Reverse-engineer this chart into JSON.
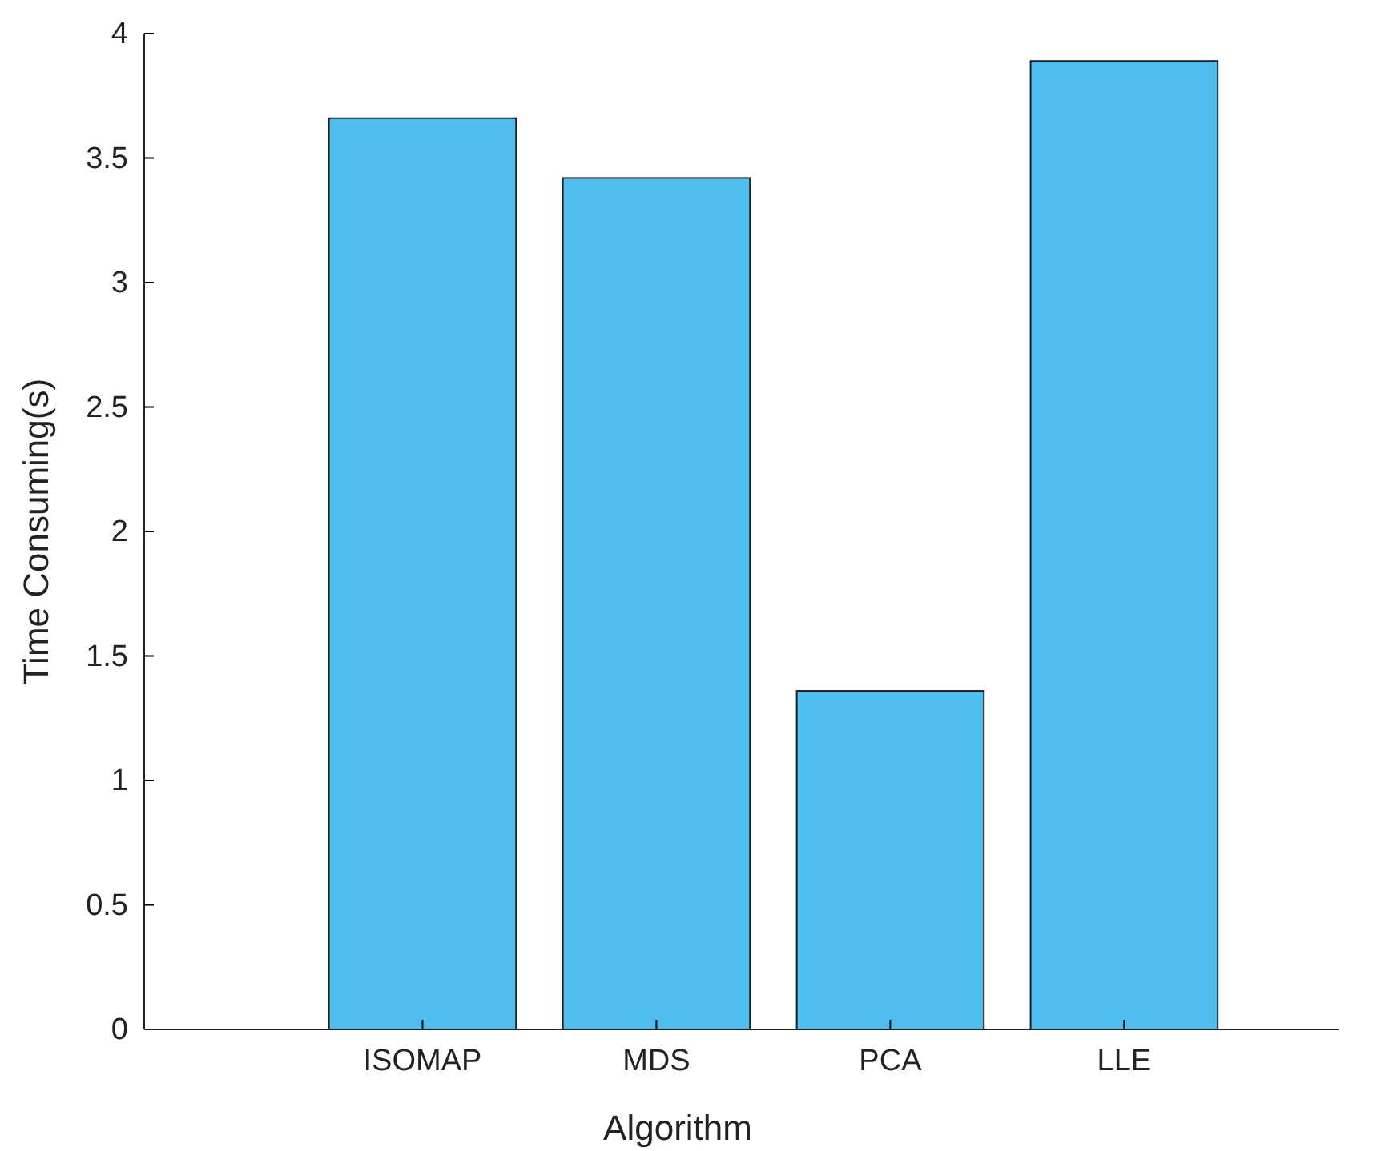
{
  "chart_data": {
    "type": "bar",
    "xlabel": "Algorithm",
    "ylabel": "Time Consuming(s)",
    "categories": [
      "ISOMAP",
      "MDS",
      "PCA",
      "LLE"
    ],
    "values": [
      3.66,
      3.42,
      1.36,
      3.89
    ],
    "color": "#4dbeee",
    "ylim": [
      0,
      4
    ],
    "yticks": [
      0,
      {
        "value": 0.5,
        "label": "0.5"
      },
      1,
      {
        "value": 1.5,
        "label": "1.5"
      },
      2,
      {
        "value": 2.5,
        "label": "2.5"
      },
      3,
      {
        "value": 3.5,
        "label": "3.5"
      },
      4
    ],
    "grid": false
  }
}
